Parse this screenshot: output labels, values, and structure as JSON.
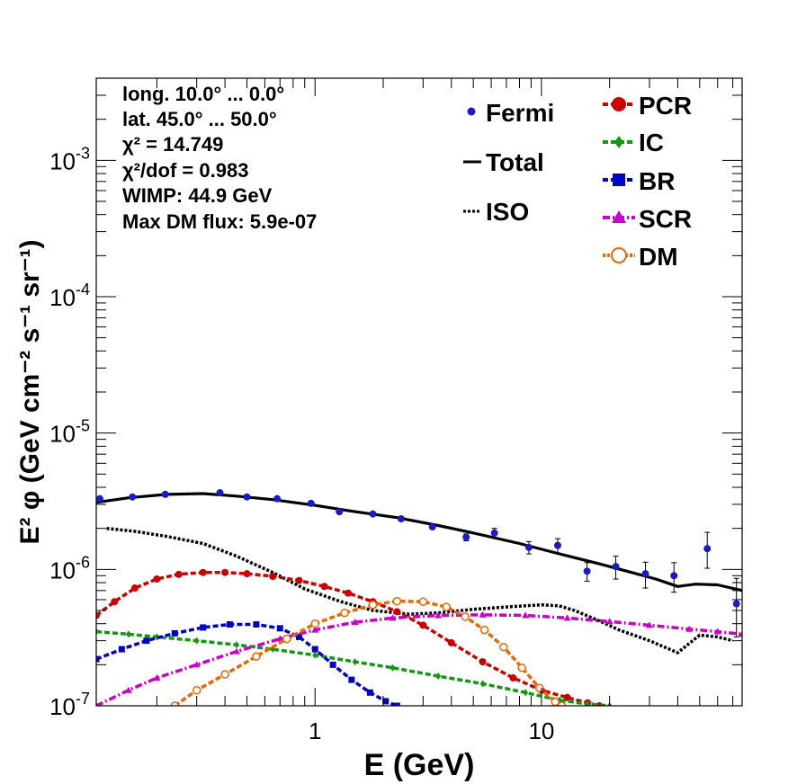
{
  "colors": {
    "fermi": "#1a1acc",
    "total": "#000000",
    "iso": "#000000",
    "pcr": "#cc0000",
    "ic": "#119911",
    "br": "#0000cc",
    "scr": "#cc00cc",
    "dm": "#ee6600"
  },
  "chart_data": {
    "type": "line",
    "title": "",
    "xlabel": "E (GeV)",
    "ylabel": "E² φ (GeV cm⁻² s⁻¹ sr⁻¹)",
    "xscale": "log",
    "yscale": "log",
    "xlim": [
      0.108,
      77
    ],
    "ylim": [
      1e-07,
      0.004
    ],
    "x_ticks": [
      {
        "value": 1,
        "label": "1"
      },
      {
        "value": 10,
        "label": "10"
      }
    ],
    "y_ticks": [
      {
        "value": 1e-07,
        "mant": "10",
        "exp": "-7"
      },
      {
        "value": 1e-06,
        "mant": "10",
        "exp": "-6"
      },
      {
        "value": 1e-05,
        "mant": "10",
        "exp": "-5"
      },
      {
        "value": 0.0001,
        "mant": "10",
        "exp": "-4"
      },
      {
        "value": 0.001,
        "mant": "10",
        "exp": "-3"
      }
    ],
    "info_text": {
      "longitude": "long. 10.0° ... 0.0°",
      "latitude": "lat. 45.0° ... 50.0°",
      "chi2": "χ² = 14.749",
      "chi2_dof": "χ²/dof = 0.983",
      "wimp": "WIMP: 44.9 GeV",
      "max_dm_flux": "Max DM flux: 5.9e-07"
    },
    "legend": {
      "fermi": "Fermi",
      "total": "Total",
      "iso": "ISO",
      "pcr": "PCR",
      "ic": "IC",
      "br": "BR",
      "scr": "SCR",
      "dm": "DM"
    },
    "fermi_points": {
      "x": [
        0.112,
        0.156,
        0.218,
        0.38,
        0.5,
        0.68,
        0.96,
        1.28,
        1.8,
        2.4,
        3.3,
        4.65,
        6.2,
        8.8,
        11.8,
        15.9,
        21.3,
        28.8,
        38.5,
        54,
        72.7
      ],
      "y": [
        3.3e-06,
        3.4e-06,
        3.55e-06,
        3.65e-06,
        3.4e-06,
        3.3e-06,
        3.05e-06,
        2.65e-06,
        2.55e-06,
        2.35e-06,
        2.05e-06,
        1.72e-06,
        1.85e-06,
        1.45e-06,
        1.5e-06,
        9.7e-07,
        1.05e-06,
        9.3e-07,
        9e-07,
        1.42e-06,
        5.6e-07
      ],
      "err_low": [
        0,
        0,
        0,
        0,
        0,
        0,
        0,
        0,
        0,
        0,
        0,
        1e-07,
        1.5e-07,
        1.5e-07,
        1.8e-07,
        1.5e-07,
        2e-07,
        2e-07,
        2.2e-07,
        4e-07,
        2.4e-07
      ],
      "err_high": [
        0,
        0,
        0,
        0,
        0,
        0,
        0,
        0,
        0,
        0,
        0,
        1e-07,
        1.5e-07,
        1.5e-07,
        1.8e-07,
        1.5e-07,
        2e-07,
        2e-07,
        2.2e-07,
        4.5e-07,
        3e-07
      ]
    },
    "series": [
      {
        "name": "Total",
        "key": "total",
        "style": "solid",
        "marker": "none",
        "x": [
          0.108,
          0.15,
          0.22,
          0.32,
          0.45,
          0.65,
          1.0,
          1.5,
          2.3,
          3.5,
          5.0,
          8.0,
          12.0,
          18.0,
          25.0,
          32.0,
          40.0,
          48.0,
          60.0,
          77.0
        ],
        "y": [
          3.1e-06,
          3.35e-06,
          3.55e-06,
          3.6e-06,
          3.45e-06,
          3.25e-06,
          2.95e-06,
          2.65e-06,
          2.4e-06,
          2.1e-06,
          1.85e-06,
          1.55e-06,
          1.3e-06,
          1.1e-06,
          9.5e-07,
          8.5e-07,
          7.5e-07,
          7.8e-07,
          7.7e-07,
          7e-07
        ]
      },
      {
        "name": "ISO",
        "key": "iso",
        "style": "dotted",
        "marker": "none",
        "x": [
          0.12,
          0.16,
          0.22,
          0.32,
          0.45,
          0.65,
          0.9,
          1.3,
          1.8,
          2.6,
          3.5,
          5.0,
          7.0,
          10.0,
          12.0,
          14.0,
          18.0,
          22.0,
          30.0,
          40.0,
          50.0,
          60.0,
          70.0
        ],
        "y": [
          2e-06,
          1.9e-06,
          1.75e-06,
          1.55e-06,
          1.25e-06,
          9.5e-07,
          7.2e-07,
          5.8e-07,
          5e-07,
          4.7e-07,
          4.8e-07,
          5.1e-07,
          5.3e-07,
          5.5e-07,
          5.4e-07,
          5e-07,
          4.2e-07,
          3.6e-07,
          3e-07,
          2.45e-07,
          3.3e-07,
          3.2e-07,
          3e-07
        ]
      },
      {
        "name": "PCR",
        "key": "pcr",
        "style": "dashed",
        "marker": "circle",
        "x": [
          0.108,
          0.13,
          0.16,
          0.2,
          0.25,
          0.32,
          0.4,
          0.5,
          0.65,
          0.85,
          1.1,
          1.4,
          1.8,
          2.3,
          3.0,
          4.0,
          5.5,
          7.5,
          10.0,
          13.0,
          16.0,
          18.0
        ],
        "y": [
          4.6e-07,
          5.8e-07,
          7.3e-07,
          8.5e-07,
          9.2e-07,
          9.5e-07,
          9.5e-07,
          9.3e-07,
          8.9e-07,
          8.3e-07,
          7.5e-07,
          6.7e-07,
          5.8e-07,
          4.9e-07,
          3.9e-07,
          2.9e-07,
          2.1e-07,
          1.6e-07,
          1.3e-07,
          1.15e-07,
          1.05e-07,
          1e-07
        ]
      },
      {
        "name": "IC",
        "key": "ic",
        "style": "dashed",
        "marker": "diamond",
        "x": [
          0.108,
          0.15,
          0.2,
          0.3,
          0.45,
          0.65,
          1.0,
          1.5,
          2.2,
          3.5,
          5.5,
          8.5,
          12.0,
          16.0,
          20.0
        ],
        "y": [
          3.5e-07,
          3.35e-07,
          3.2e-07,
          3e-07,
          2.8e-07,
          2.6e-07,
          2.35e-07,
          2.1e-07,
          1.9e-07,
          1.65e-07,
          1.45e-07,
          1.25e-07,
          1.1e-07,
          1.03e-07,
          1e-07
        ]
      },
      {
        "name": "BR",
        "key": "br",
        "style": "dashed",
        "marker": "square",
        "x": [
          0.108,
          0.14,
          0.18,
          0.24,
          0.32,
          0.42,
          0.55,
          0.7,
          0.85,
          1.0,
          1.2,
          1.45,
          1.75,
          2.05,
          2.3
        ],
        "y": [
          2.2e-07,
          2.6e-07,
          3e-07,
          3.4e-07,
          3.75e-07,
          3.95e-07,
          3.95e-07,
          3.7e-07,
          3.2e-07,
          2.6e-07,
          2e-07,
          1.55e-07,
          1.25e-07,
          1.08e-07,
          1e-07
        ]
      },
      {
        "name": "SCR",
        "key": "scr",
        "style": "dashdot",
        "marker": "triangle",
        "x": [
          0.108,
          0.15,
          0.2,
          0.3,
          0.45,
          0.7,
          1.0,
          1.5,
          2.2,
          3.5,
          5.5,
          8.5,
          13.0,
          20.0,
          30.0,
          45.0,
          60.0,
          77.0
        ],
        "y": [
          1e-07,
          1.3e-07,
          1.6e-07,
          2e-07,
          2.5e-07,
          3.1e-07,
          3.6e-07,
          4.1e-07,
          4.4e-07,
          4.6e-07,
          4.65e-07,
          4.6e-07,
          4.4e-07,
          4.15e-07,
          3.9e-07,
          3.65e-07,
          3.5e-07,
          3.35e-07
        ]
      },
      {
        "name": "DM",
        "key": "dm",
        "style": "dashed",
        "marker": "open-circle",
        "x": [
          0.24,
          0.3,
          0.4,
          0.55,
          0.75,
          1.0,
          1.35,
          1.8,
          2.3,
          3.0,
          3.8,
          4.6,
          5.6,
          6.8,
          8.2,
          9.8,
          11.5,
          12.3
        ],
        "y": [
          1e-07,
          1.3e-07,
          1.7e-07,
          2.3e-07,
          3.1e-07,
          4e-07,
          4.8e-07,
          5.5e-07,
          5.85e-07,
          5.8e-07,
          5.3e-07,
          4.5e-07,
          3.6e-07,
          2.7e-07,
          1.9e-07,
          1.35e-07,
          1.07e-07,
          1e-07
        ]
      }
    ]
  }
}
